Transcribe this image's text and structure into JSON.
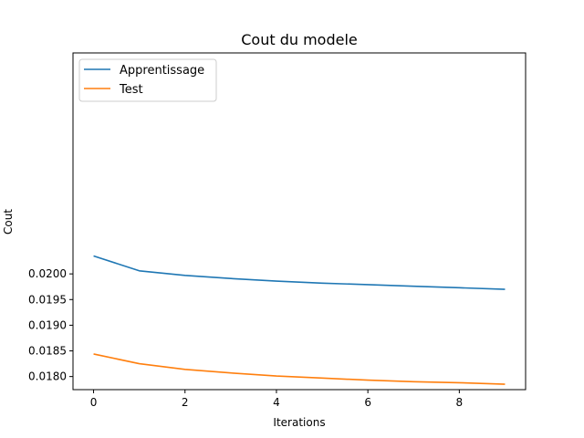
{
  "chart_data": {
    "type": "line",
    "title": "Cout du modele",
    "xlabel": "Iterations",
    "ylabel": "Cout",
    "x": [
      0,
      1,
      2,
      3,
      4,
      5,
      6,
      7,
      8,
      9
    ],
    "xlim": [
      -0.45,
      9.45
    ],
    "ylim": [
      0.017745,
      0.024305
    ],
    "xticks": [
      0,
      2,
      4,
      6,
      8
    ],
    "xtick_labels": [
      "0",
      "2",
      "4",
      "6",
      "8"
    ],
    "yticks": [
      0.018,
      0.0185,
      0.019,
      0.0195,
      0.02
    ],
    "ytick_labels": [
      "0.0180",
      "0.0185",
      "0.0190",
      "0.0195",
      "0.0200"
    ],
    "grid": false,
    "legend_position": "top-left",
    "series": [
      {
        "name": "Apprentissage",
        "color": "#1f77b4",
        "values": [
          0.02035,
          0.02006,
          0.01997,
          0.01991,
          0.01986,
          0.01982,
          0.01979,
          0.01976,
          0.01973,
          0.0197
        ]
      },
      {
        "name": "Test",
        "color": "#ff7f0e",
        "values": [
          0.01844,
          0.01825,
          0.01814,
          0.01807,
          0.01801,
          0.01797,
          0.01793,
          0.0179,
          0.01788,
          0.01785
        ]
      }
    ]
  }
}
